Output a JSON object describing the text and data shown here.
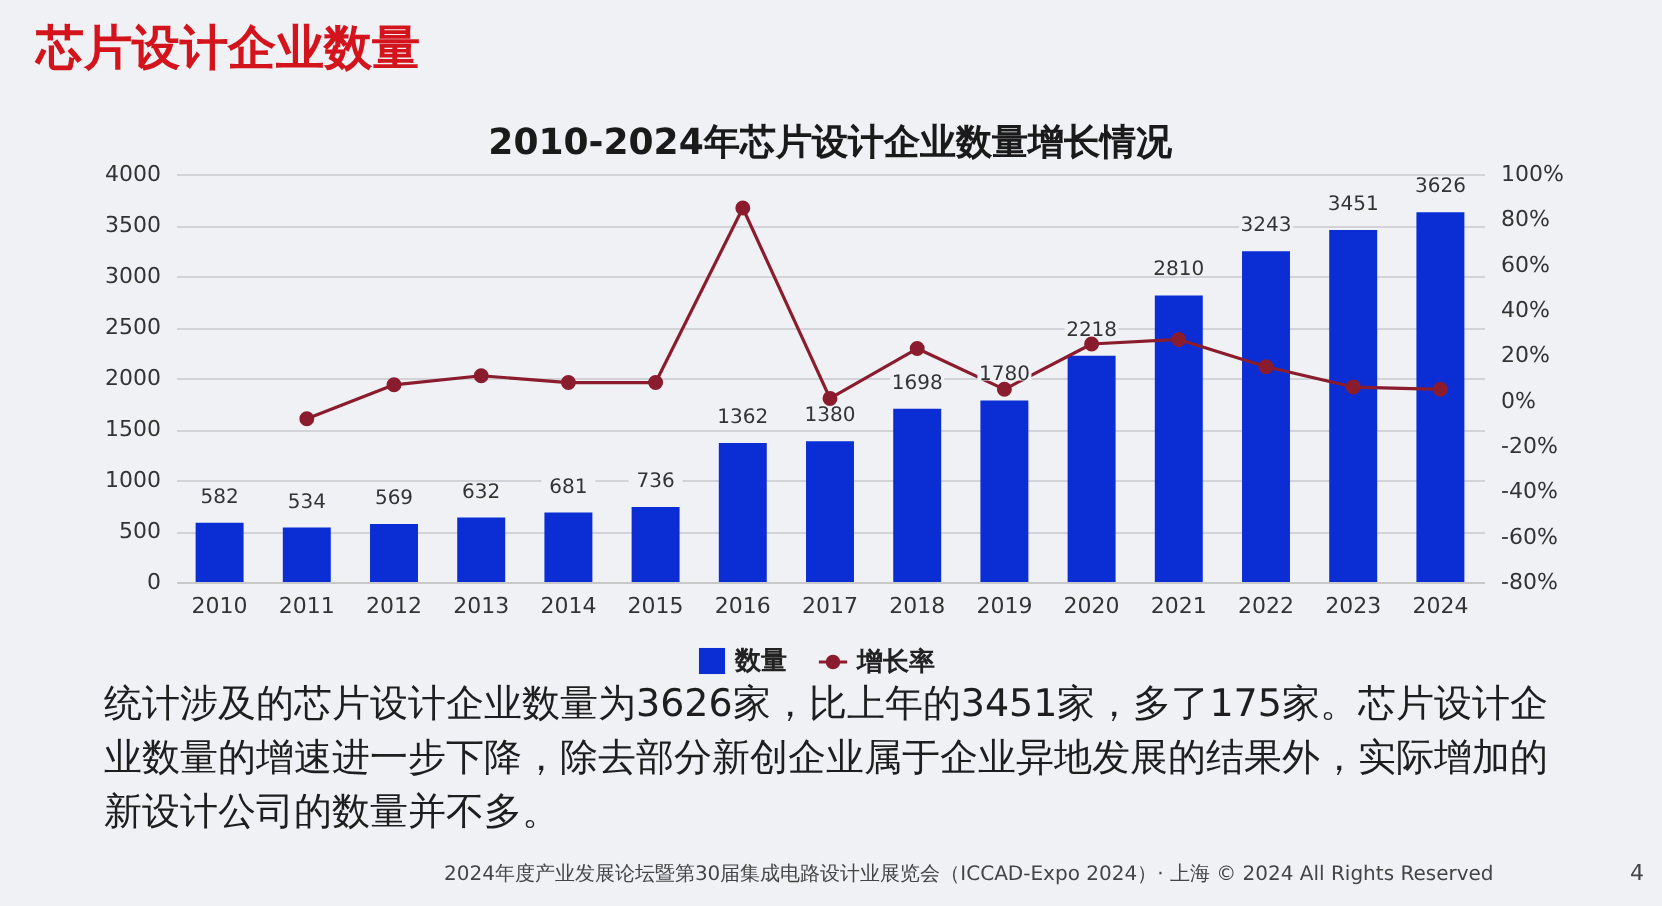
{
  "chart_data": {
    "type": "bar",
    "title": "2010-2024年芯片设计企业数量增长情况",
    "categories": [
      "2010",
      "2011",
      "2012",
      "2013",
      "2014",
      "2015",
      "2016",
      "2017",
      "2018",
      "2019",
      "2020",
      "2021",
      "2022",
      "2023",
      "2024"
    ],
    "series": [
      {
        "name": "数量",
        "color": "#0b2ed4",
        "values": [
          582,
          534,
          569,
          632,
          681,
          736,
          1362,
          1380,
          1698,
          1780,
          2218,
          2810,
          3243,
          3451,
          3626
        ],
        "value_labels": [
          "582",
          "534",
          "569",
          "632",
          "681",
          "736",
          "1362",
          "1380",
          "1698",
          "1780",
          "2218",
          "2810",
          "3243",
          "3451",
          "3626"
        ]
      },
      {
        "name": "增长率",
        "type": "line",
        "axis": "y2",
        "color": "#8a1c2e",
        "marker": "circle",
        "values": [
          null,
          -8,
          7,
          11,
          8,
          8,
          85,
          1,
          23,
          5,
          25,
          27,
          15,
          6,
          5
        ]
      }
    ],
    "ylim": [
      0,
      4000
    ],
    "yticks": [
      0,
      500,
      1000,
      1500,
      2000,
      2500,
      3000,
      3500,
      4000
    ],
    "y2lim": [
      -80,
      100
    ],
    "y2ticks": [
      {
        "value": -80,
        "label": "-80%"
      },
      {
        "value": -60,
        "label": "-60%"
      },
      {
        "value": -40,
        "label": "-40%"
      },
      {
        "value": -20,
        "label": "-20%"
      },
      {
        "value": 0,
        "label": "0%"
      },
      {
        "value": 20,
        "label": "20%"
      },
      {
        "value": 40,
        "label": "40%"
      },
      {
        "value": 60,
        "label": "60%"
      },
      {
        "value": 80,
        "label": "80%"
      },
      {
        "value": 100,
        "label": "100%"
      }
    ],
    "grid": "y",
    "legend": "bottom",
    "annotations": [
      "芯片设计企业数量",
      "统计涉及的芯片设计企业数量为3626家，比上年的3451家，多了175家。芯片设计企",
      "业数量的增速进一步下降，除去部分新创企业属于企业异地发展的结果外，实际增加的",
      "新设计公司的数量并不多。",
      "2024年度产业发展论坛暨第30届集成电路设计业展览会（ICCAD-Expo 2024）· 上海 © 2024 All Rights Reserved",
      "4"
    ]
  }
}
